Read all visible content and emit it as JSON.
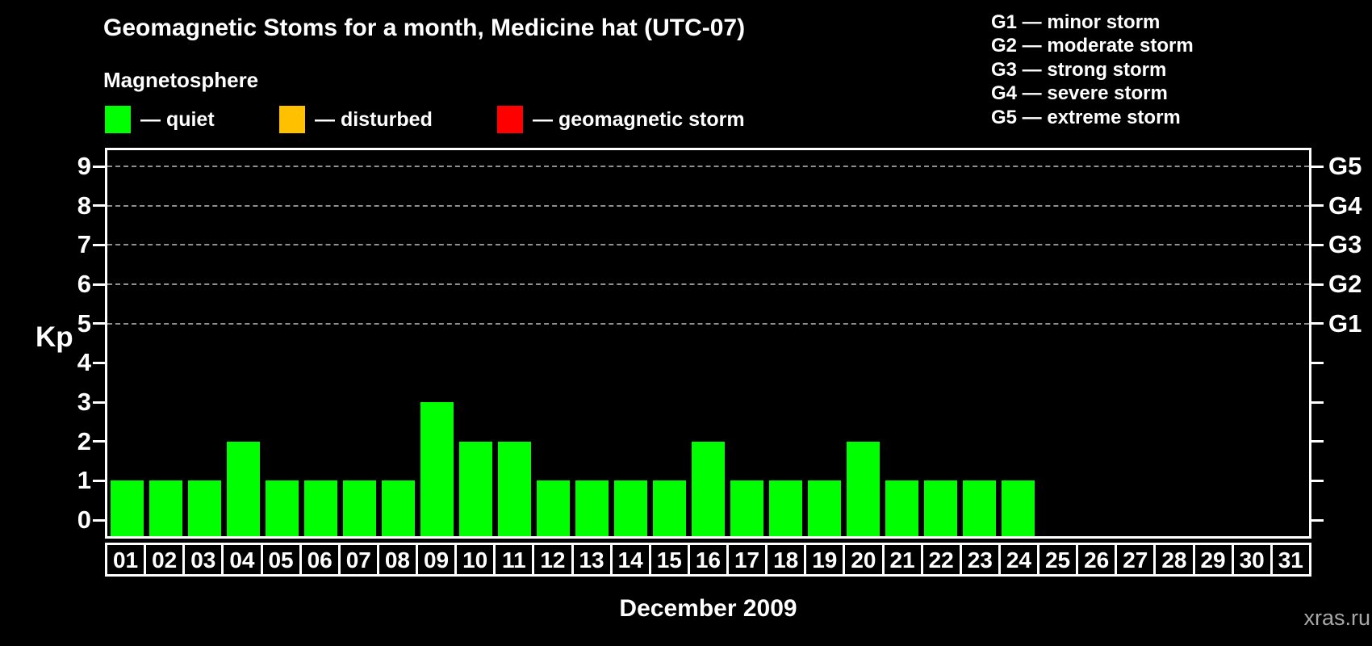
{
  "title": "Geomagnetic Stoms for a month, Medicine hat (UTC-07)",
  "subtitle": "Magnetosphere",
  "legend": {
    "items": [
      {
        "name": "quiet",
        "label": "— quiet",
        "color": "#00ff00"
      },
      {
        "name": "disturbed",
        "label": "— disturbed",
        "color": "#ffc000"
      },
      {
        "name": "geomagnetic-storm",
        "label": "— geomagnetic storm",
        "color": "#ff0000"
      }
    ]
  },
  "storm_scale_legend": [
    "G1 — minor storm",
    "G2 — moderate storm",
    "G3 — strong storm",
    "G4 — severe storm",
    "G5 — extreme storm"
  ],
  "watermark": "xras.ru",
  "chart_data": {
    "type": "bar",
    "title": "Geomagnetic Stoms for a month, Medicine hat (UTC-07)",
    "xlabel": "December 2009",
    "ylabel": "Kp",
    "categories": [
      "01",
      "02",
      "03",
      "04",
      "05",
      "06",
      "07",
      "08",
      "09",
      "10",
      "11",
      "12",
      "13",
      "14",
      "15",
      "16",
      "17",
      "18",
      "19",
      "20",
      "21",
      "22",
      "23",
      "24",
      "25",
      "26",
      "27",
      "28",
      "29",
      "30",
      "31"
    ],
    "values": [
      1,
      1,
      1,
      2,
      1,
      1,
      1,
      1,
      3,
      2,
      2,
      1,
      1,
      1,
      1,
      2,
      1,
      1,
      1,
      2,
      1,
      1,
      1,
      1,
      0,
      0,
      0,
      0,
      0,
      0,
      0
    ],
    "bar_color": "#00ff00",
    "ylim": [
      0,
      9
    ],
    "yticks": [
      0,
      1,
      2,
      3,
      4,
      5,
      6,
      7,
      8,
      9
    ],
    "gridlines_at_kp": [
      5,
      6,
      7,
      8,
      9
    ],
    "grid_color": "#909090",
    "grid_style": "dashed horizontal lines only at G-storm levels",
    "right_axis_labels": [
      {
        "kp": 5,
        "label": "G1"
      },
      {
        "kp": 6,
        "label": "G2"
      },
      {
        "kp": 7,
        "label": "G3"
      },
      {
        "kp": 8,
        "label": "G4"
      },
      {
        "kp": 9,
        "label": "G5"
      }
    ],
    "legend_position": "top-left and top-right",
    "background": "#000000"
  }
}
